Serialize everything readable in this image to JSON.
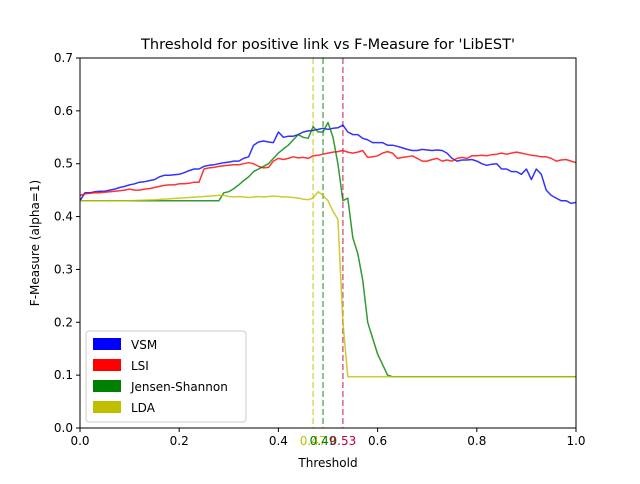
{
  "chart_data": {
    "type": "line",
    "title": "Threshold for positive link vs F-Measure for 'LibEST'",
    "xlabel": "Threshold",
    "ylabel": "F-Measure (alpha=1)",
    "xlim": [
      0,
      1
    ],
    "ylim": [
      0,
      0.7
    ],
    "xticks": [
      "0.0",
      "0.2",
      "0.4",
      "0.6",
      "0.8",
      "1.0"
    ],
    "yticks": [
      "0.0",
      "0.1",
      "0.2",
      "0.3",
      "0.4",
      "0.5",
      "0.6",
      "0.7"
    ],
    "grid": false,
    "legend_position": "lower-left",
    "series": [
      {
        "name": "VSM",
        "color": "#0000ff",
        "x": [
          0.0,
          0.01,
          0.02,
          0.03,
          0.04,
          0.05,
          0.06,
          0.07,
          0.08,
          0.09,
          0.1,
          0.11,
          0.12,
          0.13,
          0.14,
          0.15,
          0.16,
          0.17,
          0.18,
          0.19,
          0.2,
          0.21,
          0.22,
          0.23,
          0.24,
          0.25,
          0.26,
          0.27,
          0.28,
          0.29,
          0.3,
          0.31,
          0.32,
          0.33,
          0.34,
          0.35,
          0.36,
          0.37,
          0.38,
          0.39,
          0.4,
          0.41,
          0.42,
          0.43,
          0.44,
          0.45,
          0.46,
          0.47,
          0.48,
          0.49,
          0.5,
          0.51,
          0.52,
          0.53,
          0.54,
          0.55,
          0.56,
          0.57,
          0.58,
          0.59,
          0.6,
          0.61,
          0.62,
          0.63,
          0.64,
          0.65,
          0.66,
          0.67,
          0.68,
          0.69,
          0.7,
          0.71,
          0.72,
          0.73,
          0.74,
          0.75,
          0.76,
          0.77,
          0.78,
          0.79,
          0.8,
          0.81,
          0.82,
          0.83,
          0.84,
          0.85,
          0.86,
          0.87,
          0.88,
          0.89,
          0.9,
          0.91,
          0.92,
          0.93,
          0.94,
          0.95,
          0.96,
          0.97,
          0.98,
          0.99,
          1.0
        ],
        "values": [
          0.43,
          0.445,
          0.445,
          0.447,
          0.448,
          0.448,
          0.45,
          0.452,
          0.455,
          0.457,
          0.46,
          0.462,
          0.465,
          0.466,
          0.468,
          0.47,
          0.475,
          0.478,
          0.478,
          0.479,
          0.48,
          0.483,
          0.487,
          0.49,
          0.49,
          0.495,
          0.497,
          0.498,
          0.5,
          0.502,
          0.503,
          0.505,
          0.505,
          0.51,
          0.513,
          0.535,
          0.541,
          0.543,
          0.541,
          0.54,
          0.56,
          0.55,
          0.552,
          0.552,
          0.555,
          0.56,
          0.562,
          0.563,
          0.565,
          0.567,
          0.565,
          0.567,
          0.568,
          0.573,
          0.56,
          0.555,
          0.555,
          0.548,
          0.545,
          0.54,
          0.54,
          0.54,
          0.535,
          0.535,
          0.533,
          0.53,
          0.527,
          0.525,
          0.525,
          0.527,
          0.526,
          0.525,
          0.526,
          0.525,
          0.52,
          0.51,
          0.505,
          0.507,
          0.507,
          0.508,
          0.505,
          0.5,
          0.497,
          0.499,
          0.5,
          0.49,
          0.49,
          0.485,
          0.485,
          0.48,
          0.49,
          0.47,
          0.49,
          0.48,
          0.45,
          0.44,
          0.435,
          0.43,
          0.43,
          0.425,
          0.427
        ]
      },
      {
        "name": "LSI",
        "color": "#ff0000",
        "x": [
          0.0,
          0.01,
          0.02,
          0.03,
          0.04,
          0.05,
          0.06,
          0.07,
          0.08,
          0.09,
          0.1,
          0.11,
          0.12,
          0.13,
          0.14,
          0.15,
          0.16,
          0.17,
          0.18,
          0.19,
          0.2,
          0.21,
          0.22,
          0.23,
          0.24,
          0.25,
          0.26,
          0.27,
          0.28,
          0.29,
          0.3,
          0.31,
          0.32,
          0.33,
          0.34,
          0.35,
          0.36,
          0.37,
          0.38,
          0.39,
          0.4,
          0.41,
          0.42,
          0.43,
          0.44,
          0.45,
          0.46,
          0.47,
          0.48,
          0.49,
          0.5,
          0.51,
          0.52,
          0.53,
          0.54,
          0.55,
          0.56,
          0.57,
          0.58,
          0.59,
          0.6,
          0.61,
          0.62,
          0.63,
          0.64,
          0.65,
          0.66,
          0.67,
          0.68,
          0.69,
          0.7,
          0.71,
          0.72,
          0.73,
          0.74,
          0.75,
          0.76,
          0.77,
          0.78,
          0.79,
          0.8,
          0.81,
          0.82,
          0.83,
          0.84,
          0.85,
          0.86,
          0.87,
          0.88,
          0.89,
          0.9,
          0.91,
          0.92,
          0.93,
          0.94,
          0.95,
          0.96,
          0.97,
          0.98,
          0.99,
          1.0
        ],
        "values": [
          0.44,
          0.443,
          0.444,
          0.445,
          0.445,
          0.446,
          0.447,
          0.448,
          0.449,
          0.45,
          0.452,
          0.45,
          0.45,
          0.452,
          0.453,
          0.455,
          0.457,
          0.459,
          0.46,
          0.46,
          0.462,
          0.462,
          0.463,
          0.465,
          0.465,
          0.49,
          0.492,
          0.493,
          0.495,
          0.496,
          0.497,
          0.498,
          0.498,
          0.5,
          0.502,
          0.5,
          0.495,
          0.492,
          0.493,
          0.505,
          0.51,
          0.508,
          0.51,
          0.513,
          0.511,
          0.512,
          0.51,
          0.515,
          0.516,
          0.518,
          0.52,
          0.522,
          0.523,
          0.525,
          0.522,
          0.52,
          0.522,
          0.525,
          0.512,
          0.513,
          0.515,
          0.52,
          0.523,
          0.52,
          0.51,
          0.512,
          0.513,
          0.515,
          0.51,
          0.505,
          0.505,
          0.508,
          0.51,
          0.505,
          0.507,
          0.505,
          0.51,
          0.512,
          0.51,
          0.515,
          0.515,
          0.516,
          0.515,
          0.517,
          0.518,
          0.52,
          0.518,
          0.52,
          0.522,
          0.52,
          0.518,
          0.516,
          0.515,
          0.513,
          0.513,
          0.51,
          0.505,
          0.507,
          0.508,
          0.505,
          0.502
        ]
      },
      {
        "name": "Jensen-Shannon",
        "color": "#008000",
        "x": [
          0.0,
          0.05,
          0.1,
          0.15,
          0.2,
          0.25,
          0.28,
          0.29,
          0.3,
          0.31,
          0.32,
          0.33,
          0.34,
          0.35,
          0.36,
          0.37,
          0.38,
          0.39,
          0.4,
          0.41,
          0.42,
          0.43,
          0.44,
          0.45,
          0.46,
          0.47,
          0.48,
          0.49,
          0.5,
          0.51,
          0.52,
          0.53,
          0.54,
          0.55,
          0.56,
          0.57,
          0.58,
          0.59,
          0.6,
          0.61,
          0.62,
          0.63,
          0.64,
          0.7,
          0.8,
          0.9,
          1.0
        ],
        "values": [
          0.43,
          0.43,
          0.43,
          0.43,
          0.43,
          0.43,
          0.43,
          0.445,
          0.447,
          0.453,
          0.46,
          0.468,
          0.475,
          0.485,
          0.49,
          0.495,
          0.5,
          0.51,
          0.52,
          0.528,
          0.535,
          0.545,
          0.555,
          0.55,
          0.548,
          0.57,
          0.56,
          0.56,
          0.578,
          0.55,
          0.5,
          0.43,
          0.435,
          0.36,
          0.33,
          0.28,
          0.2,
          0.17,
          0.14,
          0.12,
          0.1,
          0.097,
          0.097,
          0.097,
          0.097,
          0.097,
          0.097
        ]
      },
      {
        "name": "LDA",
        "color": "#bfbf00",
        "x": [
          0.0,
          0.05,
          0.1,
          0.15,
          0.2,
          0.25,
          0.28,
          0.29,
          0.3,
          0.31,
          0.32,
          0.33,
          0.34,
          0.35,
          0.36,
          0.37,
          0.38,
          0.39,
          0.4,
          0.41,
          0.42,
          0.43,
          0.44,
          0.45,
          0.46,
          0.47,
          0.48,
          0.49,
          0.5,
          0.51,
          0.52,
          0.53,
          0.54,
          0.55,
          0.6,
          0.7,
          0.8,
          0.9,
          1.0
        ],
        "values": [
          0.43,
          0.43,
          0.43,
          0.432,
          0.435,
          0.438,
          0.44,
          0.44,
          0.438,
          0.437,
          0.438,
          0.437,
          0.436,
          0.437,
          0.438,
          0.437,
          0.438,
          0.439,
          0.438,
          0.437,
          0.437,
          0.436,
          0.435,
          0.433,
          0.432,
          0.435,
          0.447,
          0.44,
          0.43,
          0.41,
          0.395,
          0.2,
          0.097,
          0.097,
          0.097,
          0.097,
          0.097,
          0.097,
          0.097
        ]
      }
    ],
    "vlines": [
      {
        "x": 0.47,
        "color": "#bfbf00",
        "label": "0.47"
      },
      {
        "x": 0.49,
        "color": "#008000",
        "label": "0.49"
      },
      {
        "x": 0.53,
        "color": "#c00040",
        "label": "0.53"
      }
    ]
  }
}
